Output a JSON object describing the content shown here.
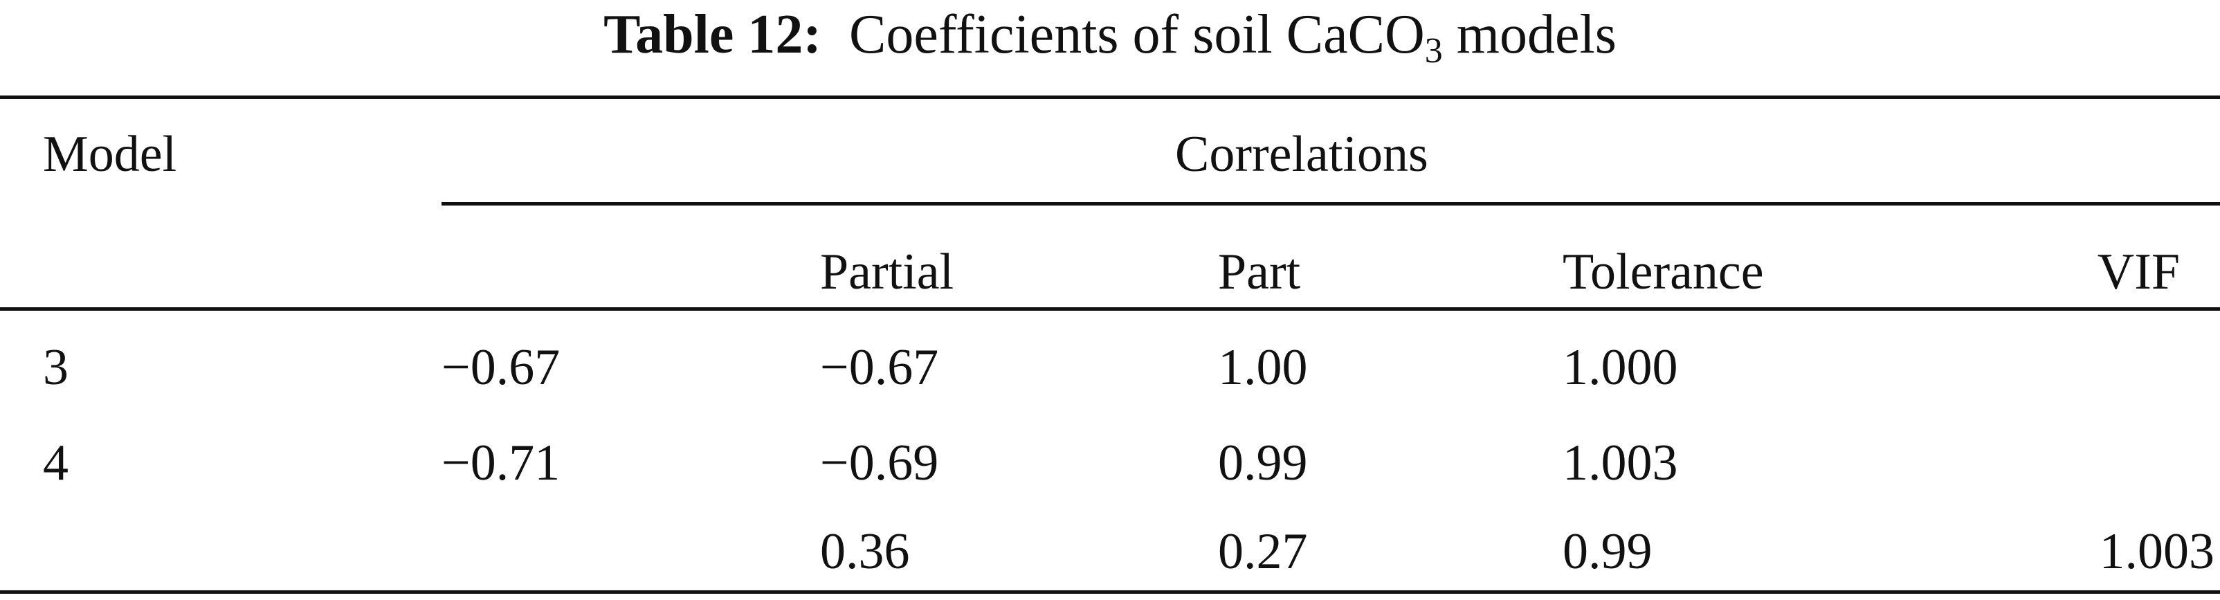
{
  "caption": {
    "label": "Table 12:",
    "text_before_sub": "Coefficients of soil CaCO",
    "subscript": "3",
    "text_after_sub": " models"
  },
  "header": {
    "model": "Model",
    "correlations": "Correlations",
    "partial": "Partial",
    "part": "Part",
    "tolerance": "Tolerance",
    "vif": "VIF"
  },
  "rows": [
    {
      "model": "3",
      "col1": "−0.67",
      "partial": "−0.67",
      "part": "1.00",
      "tolerance": "1.000",
      "vif": ""
    },
    {
      "model": "4",
      "col1": "−0.71",
      "partial": "−0.69",
      "part": "0.99",
      "tolerance": "1.003",
      "vif": ""
    },
    {
      "model": "",
      "col1": "",
      "partial": "0.36",
      "part": "0.27",
      "tolerance": "0.99",
      "vif": "1.003"
    }
  ]
}
